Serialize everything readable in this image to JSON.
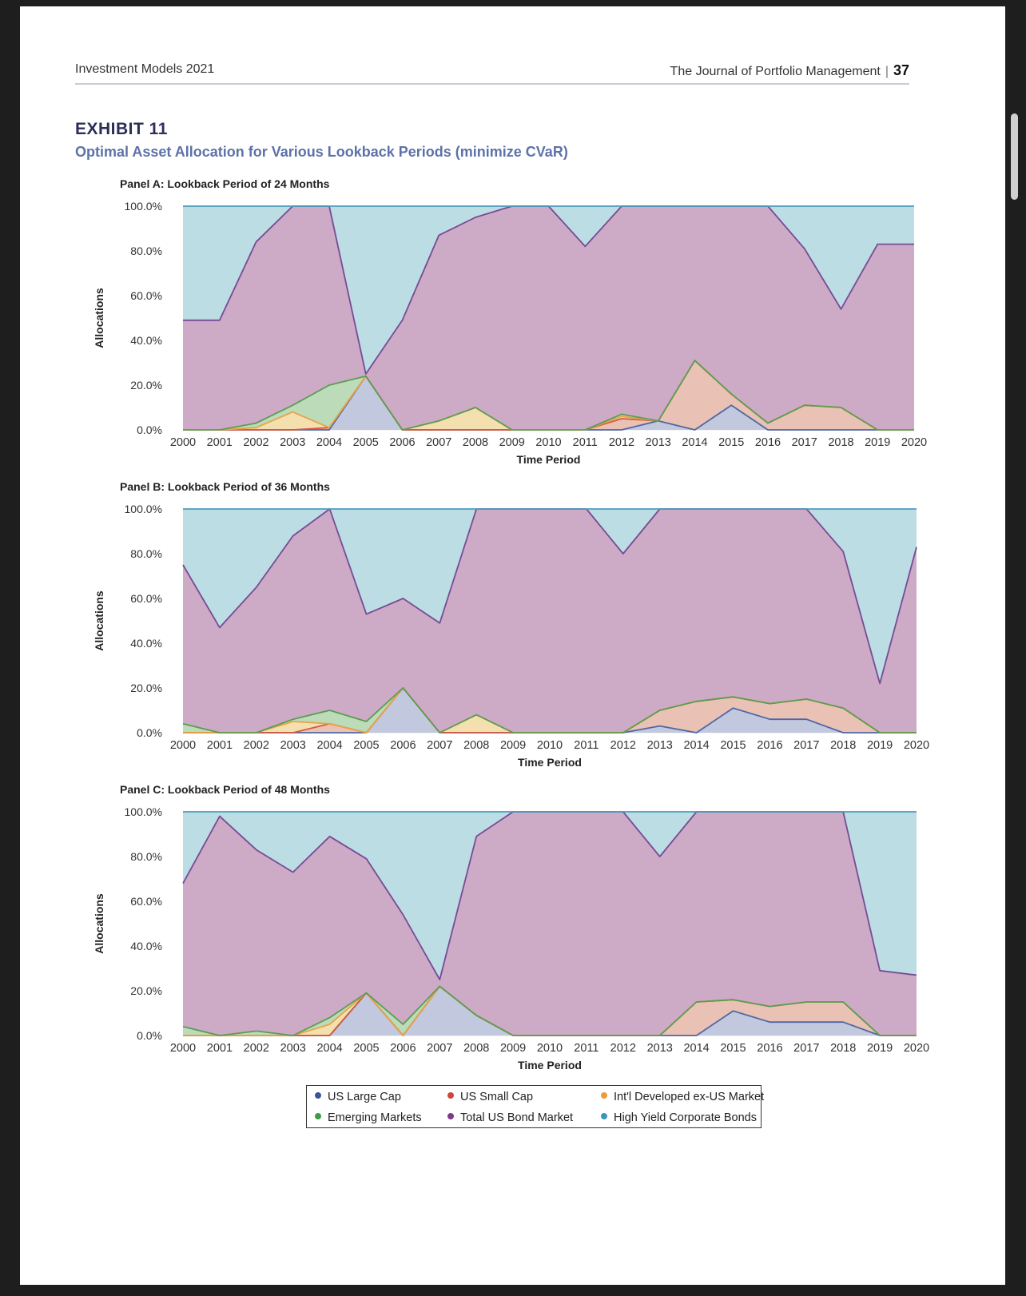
{
  "header": {
    "left": "Investment Models 2021",
    "right": "The Journal of Portfolio Management",
    "page": "37"
  },
  "exhibit": {
    "label": "EXHIBIT 11",
    "title": "Optimal Asset Allocation for Various Lookback Periods (minimize CVaR)"
  },
  "colors": {
    "fills": [
      "#c2c8de",
      "#e9c2b5",
      "#f4dfae",
      "#bcdbb9",
      "#cdaac6",
      "#bcdde4"
    ],
    "lines": [
      "#4f67a4",
      "#d35a43",
      "#e8a448",
      "#5b9d52",
      "#774b95",
      "#4f9cbc"
    ]
  },
  "legend": [
    {
      "label": "US Large Cap",
      "color": "#3a5598"
    },
    {
      "label": "US Small Cap",
      "color": "#d2453b"
    },
    {
      "label": "Int'l Developed ex-US Market",
      "color": "#eb9b3c"
    },
    {
      "label": "Emerging Markets",
      "color": "#3d9a47"
    },
    {
      "label": "Total US Bond Market",
      "color": "#7b3a8e"
    },
    {
      "label": "High Yield Corporate Bonds",
      "color": "#3c95bd"
    }
  ],
  "chart_data": [
    {
      "type": "area",
      "stacked": true,
      "title": "Panel A: Lookback Period of 24 Months",
      "xlabel": "Time Period",
      "ylabel": "Allocations",
      "ylim": [
        0,
        100
      ],
      "ytick_labels": [
        "0.0%",
        "20.0%",
        "40.0%",
        "60.0%",
        "80.0%",
        "100.0%"
      ],
      "x": [
        "2000",
        "2001",
        "2002",
        "2003",
        "2004",
        "2005",
        "2006",
        "2007",
        "2008",
        "2009",
        "2010",
        "2011",
        "2012",
        "2013",
        "2014",
        "2015",
        "2016",
        "2017",
        "2018",
        "2019",
        "2020"
      ],
      "series": [
        {
          "name": "US Large Cap",
          "values": [
            0,
            0,
            0,
            0,
            0,
            24,
            0,
            0,
            0,
            0,
            0,
            0,
            0,
            4,
            0,
            11,
            0,
            0,
            0,
            0,
            0
          ]
        },
        {
          "name": "US Small Cap",
          "values": [
            0,
            0,
            0,
            0,
            1,
            0,
            0,
            0,
            0,
            0,
            0,
            0,
            5,
            0,
            31,
            5,
            3,
            11,
            10,
            0,
            0
          ]
        },
        {
          "name": "Int'l Developed ex-US Market",
          "values": [
            0,
            0,
            1,
            8,
            0,
            0,
            0,
            4,
            10,
            0,
            0,
            0,
            1,
            0,
            0,
            0,
            0,
            0,
            0,
            0,
            0
          ]
        },
        {
          "name": "Emerging Markets",
          "values": [
            0,
            0,
            2,
            3,
            19,
            0,
            0,
            0,
            0,
            0,
            0,
            0,
            1,
            0,
            0,
            0,
            0,
            0,
            0,
            0,
            0
          ]
        },
        {
          "name": "Total US Bond Market",
          "values": [
            49,
            49,
            81,
            89,
            80,
            1,
            49,
            83,
            85,
            100,
            100,
            82,
            93,
            96,
            69,
            84,
            97,
            70,
            44,
            83,
            83
          ]
        },
        {
          "name": "High Yield Corporate Bonds",
          "values": [
            51,
            51,
            16,
            0,
            0,
            75,
            51,
            13,
            5,
            0,
            0,
            18,
            0,
            0,
            0,
            0,
            0,
            19,
            46,
            17,
            17
          ]
        }
      ]
    },
    {
      "type": "area",
      "stacked": true,
      "title": "Panel B: Lookback Period of 36 Months",
      "xlabel": "Time Period",
      "ylabel": "Allocations",
      "ylim": [
        0,
        100
      ],
      "ytick_labels": [
        "0.0%",
        "20.0%",
        "40.0%",
        "60.0%",
        "80.0%",
        "100.0%"
      ],
      "x": [
        "2000",
        "2001",
        "2002",
        "2003",
        "2004",
        "2005",
        "2006",
        "2007",
        "2008",
        "2009",
        "2010",
        "2011",
        "2012",
        "2013",
        "2014",
        "2015",
        "2016",
        "2017",
        "2018",
        "2019",
        "2020"
      ],
      "series": [
        {
          "name": "US Large Cap",
          "values": [
            0,
            0,
            0,
            0,
            0,
            0,
            20,
            0,
            0,
            0,
            0,
            0,
            0,
            3,
            0,
            11,
            6,
            6,
            0,
            0,
            0
          ]
        },
        {
          "name": "US Small Cap",
          "values": [
            0,
            0,
            0,
            0,
            4,
            0,
            0,
            0,
            0,
            0,
            0,
            0,
            0,
            7,
            14,
            5,
            7,
            9,
            11,
            0,
            0
          ]
        },
        {
          "name": "Int'l Developed ex-US Market",
          "values": [
            0,
            0,
            0,
            5,
            0,
            0,
            0,
            0,
            8,
            0,
            0,
            0,
            0,
            0,
            0,
            0,
            0,
            0,
            0,
            0,
            0
          ]
        },
        {
          "name": "Emerging Markets",
          "values": [
            4,
            0,
            0,
            1,
            6,
            5,
            0,
            0,
            0,
            0,
            0,
            0,
            0,
            0,
            0,
            0,
            0,
            0,
            0,
            0,
            0
          ]
        },
        {
          "name": "Total US Bond Market",
          "values": [
            71,
            47,
            65,
            82,
            90,
            48,
            40,
            49,
            92,
            100,
            100,
            100,
            80,
            90,
            86,
            84,
            87,
            85,
            70,
            22,
            83
          ]
        },
        {
          "name": "High Yield Corporate Bonds",
          "values": [
            25,
            53,
            35,
            12,
            0,
            47,
            40,
            51,
            0,
            0,
            0,
            0,
            20,
            0,
            0,
            0,
            0,
            0,
            19,
            78,
            17
          ]
        }
      ]
    },
    {
      "type": "area",
      "stacked": true,
      "title": "Panel C: Lookback Period of 48 Months",
      "xlabel": "Time Period",
      "ylabel": "Allocations",
      "ylim": [
        0,
        100
      ],
      "ytick_labels": [
        "0.0%",
        "20.0%",
        "40.0%",
        "60.0%",
        "80.0%",
        "100.0%"
      ],
      "x": [
        "2000",
        "2001",
        "2002",
        "2003",
        "2004",
        "2005",
        "2006",
        "2007",
        "2008",
        "2009",
        "2010",
        "2011",
        "2012",
        "2013",
        "2014",
        "2015",
        "2016",
        "2017",
        "2018",
        "2019",
        "2020"
      ],
      "series": [
        {
          "name": "US Large Cap",
          "values": [
            0,
            0,
            0,
            0,
            0,
            19,
            0,
            22,
            9,
            0,
            0,
            0,
            0,
            0,
            0,
            11,
            6,
            6,
            6,
            0,
            0
          ]
        },
        {
          "name": "US Small Cap",
          "values": [
            0,
            0,
            0,
            0,
            0,
            0,
            0,
            0,
            0,
            0,
            0,
            0,
            0,
            0,
            15,
            5,
            7,
            9,
            9,
            0,
            0
          ]
        },
        {
          "name": "Int'l Developed ex-US Market",
          "values": [
            0,
            0,
            0,
            0,
            5,
            0,
            0,
            0,
            0,
            0,
            0,
            0,
            0,
            0,
            0,
            0,
            0,
            0,
            0,
            0,
            0
          ]
        },
        {
          "name": "Emerging Markets",
          "values": [
            4,
            0,
            2,
            0,
            3,
            0,
            5,
            0,
            0,
            0,
            0,
            0,
            0,
            0,
            0,
            0,
            0,
            0,
            0,
            0,
            0
          ]
        },
        {
          "name": "Total US Bond Market",
          "values": [
            64,
            98,
            81,
            73,
            81,
            60,
            49,
            3,
            80,
            100,
            100,
            100,
            100,
            80,
            85,
            84,
            87,
            85,
            85,
            29,
            27
          ]
        },
        {
          "name": "High Yield Corporate Bonds",
          "values": [
            32,
            2,
            17,
            27,
            11,
            21,
            46,
            75,
            11,
            0,
            0,
            0,
            0,
            20,
            0,
            0,
            0,
            0,
            0,
            71,
            73
          ]
        }
      ]
    }
  ]
}
